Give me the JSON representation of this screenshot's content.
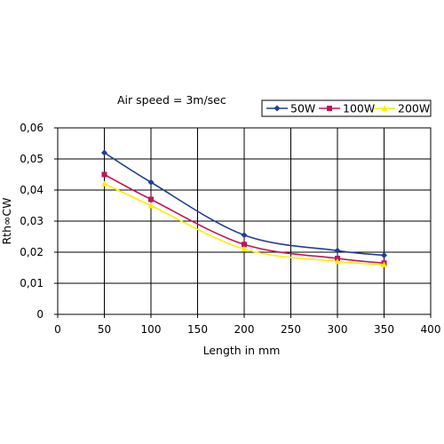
{
  "chart_data": {
    "type": "line",
    "title": "",
    "annotation": "Air speed = 3m/sec",
    "xlabel": "Length in mm",
    "ylabel": "Rth∞CW",
    "xlim": [
      0,
      400
    ],
    "ylim": [
      0,
      0.06
    ],
    "xticks": [
      0,
      50,
      100,
      150,
      200,
      250,
      300,
      350,
      400
    ],
    "xtick_labels": [
      "0",
      "50",
      "100",
      "150",
      "200",
      "250",
      "300",
      "350",
      "400"
    ],
    "yticks": [
      0,
      0.01,
      0.02,
      0.03,
      0.04,
      0.05,
      0.06
    ],
    "ytick_labels": [
      "0",
      "0,01",
      "0,02",
      "0,03",
      "0,04",
      "0,05",
      "0,06"
    ],
    "grid": "vertical and horizontal",
    "legend_position": "top-right",
    "x": [
      50,
      100,
      200,
      300,
      350
    ],
    "series": [
      {
        "name": "50W",
        "color": "#1f3f8f",
        "marker": "diamond",
        "values": [
          0.052,
          0.0425,
          0.0255,
          0.0205,
          0.019
        ]
      },
      {
        "name": "100W",
        "color": "#c0145a",
        "marker": "square",
        "values": [
          0.045,
          0.037,
          0.0225,
          0.018,
          0.0165
        ]
      },
      {
        "name": "200W",
        "color": "#ffee00",
        "marker": "triangle",
        "values": [
          0.042,
          0.035,
          0.021,
          0.017,
          0.016
        ]
      }
    ]
  }
}
